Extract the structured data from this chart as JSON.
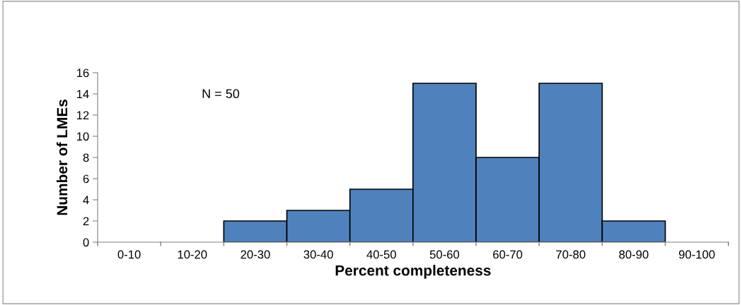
{
  "chart_data": {
    "type": "bar",
    "xlabel": "Percent completeness",
    "ylabel": "Number of LMEs",
    "categories": [
      "0-10",
      "10-20",
      "20-30",
      "30-40",
      "40-50",
      "50-60",
      "60-70",
      "70-80",
      "80-90",
      "90-100"
    ],
    "values": [
      0,
      0,
      2,
      3,
      5,
      15,
      8,
      15,
      2,
      0
    ],
    "color": "#4f81bd",
    "ylim": [
      0,
      16
    ],
    "yticks": [
      0,
      2,
      4,
      6,
      8,
      10,
      12,
      14,
      16
    ],
    "grid": false,
    "legend": false,
    "annotations": [
      "N = 50"
    ]
  }
}
